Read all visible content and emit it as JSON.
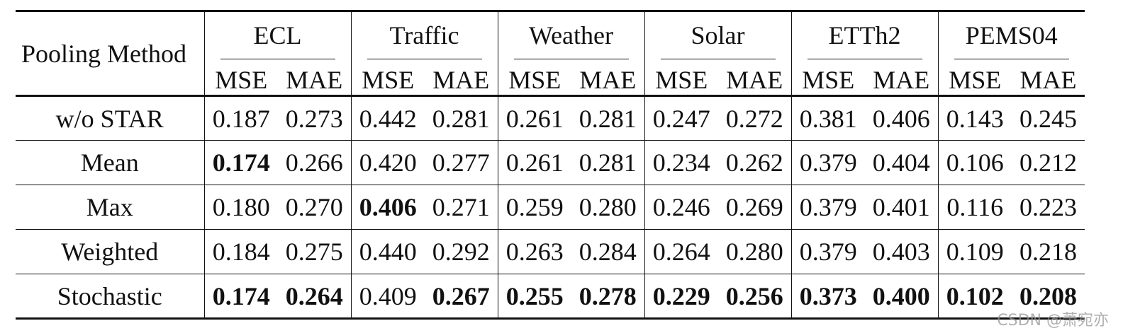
{
  "table": {
    "method_header": "Pooling Method",
    "datasets": [
      "ECL",
      "Traffic",
      "Weather",
      "Solar",
      "ETTh2",
      "PEMS04"
    ],
    "metrics": [
      "MSE",
      "MAE"
    ],
    "rows": [
      {
        "method": "w/o STAR",
        "values": [
          "0.187",
          "0.273",
          "0.442",
          "0.281",
          "0.261",
          "0.281",
          "0.247",
          "0.272",
          "0.381",
          "0.406",
          "0.143",
          "0.245"
        ],
        "bold": [
          false,
          false,
          false,
          false,
          false,
          false,
          false,
          false,
          false,
          false,
          false,
          false
        ]
      },
      {
        "method": "Mean",
        "values": [
          "0.174",
          "0.266",
          "0.420",
          "0.277",
          "0.261",
          "0.281",
          "0.234",
          "0.262",
          "0.379",
          "0.404",
          "0.106",
          "0.212"
        ],
        "bold": [
          true,
          false,
          false,
          false,
          false,
          false,
          false,
          false,
          false,
          false,
          false,
          false
        ]
      },
      {
        "method": "Max",
        "values": [
          "0.180",
          "0.270",
          "0.406",
          "0.271",
          "0.259",
          "0.280",
          "0.246",
          "0.269",
          "0.379",
          "0.401",
          "0.116",
          "0.223"
        ],
        "bold": [
          false,
          false,
          true,
          false,
          false,
          false,
          false,
          false,
          false,
          false,
          false,
          false
        ]
      },
      {
        "method": "Weighted",
        "values": [
          "0.184",
          "0.275",
          "0.440",
          "0.292",
          "0.263",
          "0.284",
          "0.264",
          "0.280",
          "0.379",
          "0.403",
          "0.109",
          "0.218"
        ],
        "bold": [
          false,
          false,
          false,
          false,
          false,
          false,
          false,
          false,
          false,
          false,
          false,
          false
        ]
      },
      {
        "method": "Stochastic",
        "values": [
          "0.174",
          "0.264",
          "0.409",
          "0.267",
          "0.255",
          "0.278",
          "0.229",
          "0.256",
          "0.373",
          "0.400",
          "0.102",
          "0.208"
        ],
        "bold": [
          true,
          true,
          false,
          true,
          true,
          true,
          true,
          true,
          true,
          true,
          true,
          true
        ]
      }
    ]
  },
  "watermark": "CSDN @萧宛亦"
}
